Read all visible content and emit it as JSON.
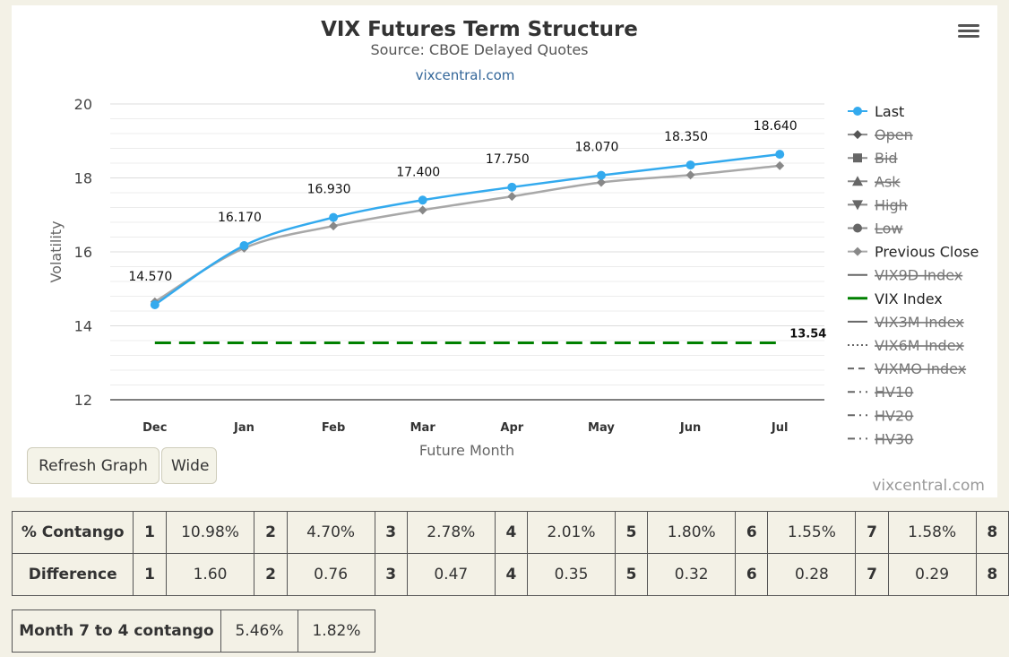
{
  "chart_data": {
    "type": "line",
    "title": "VIX Futures Term Structure",
    "subtitle": "Source: CBOE Delayed Quotes",
    "link_text": "vixcentral.com",
    "xlabel": "Future Month",
    "ylabel": "Volatility",
    "categories": [
      "Dec",
      "Jan",
      "Feb",
      "Mar",
      "Apr",
      "May",
      "Jun",
      "Jul"
    ],
    "ylim": [
      12,
      20
    ],
    "yticks": [
      12,
      14,
      16,
      18,
      20
    ],
    "grid": true,
    "legend_position": "right",
    "series": [
      {
        "name": "Last",
        "values": [
          14.57,
          16.17,
          16.93,
          17.4,
          17.75,
          18.07,
          18.35,
          18.64
        ],
        "labels": [
          "14.570",
          "16.170",
          "16.930",
          "17.400",
          "17.750",
          "18.070",
          "18.350",
          "18.640"
        ],
        "color": "#33aaee",
        "marker": "circle",
        "visible": true
      },
      {
        "name": "Previous Close",
        "values": [
          14.65,
          16.1,
          16.7,
          17.13,
          17.5,
          17.88,
          18.08,
          18.33
        ],
        "color": "#a8a8a8",
        "marker": "diamond",
        "visible": true
      },
      {
        "name": "VIX Index",
        "values": [
          13.54,
          13.54,
          13.54,
          13.54,
          13.54,
          13.54,
          13.54,
          13.54
        ],
        "end_label": "13.54",
        "color": "#008000",
        "dash": "long",
        "visible": true
      }
    ],
    "legend": [
      {
        "name": "Last",
        "icon": "circle",
        "color": "#33aaee",
        "hidden": false
      },
      {
        "name": "Open",
        "icon": "diamond",
        "color": "#555555",
        "hidden": true
      },
      {
        "name": "Bid",
        "icon": "square",
        "color": "#555555",
        "hidden": true
      },
      {
        "name": "Ask",
        "icon": "triangle",
        "color": "#555555",
        "hidden": true
      },
      {
        "name": "High",
        "icon": "triangle-down",
        "color": "#555555",
        "hidden": true
      },
      {
        "name": "Low",
        "icon": "circle",
        "color": "#555555",
        "hidden": true
      },
      {
        "name": "Previous Close",
        "icon": "diamond",
        "color": "#a8a8a8",
        "hidden": false
      },
      {
        "name": "VIX9D Index",
        "icon": "line",
        "color": "#555555",
        "hidden": true
      },
      {
        "name": "VIX Index",
        "icon": "line",
        "color": "#008000",
        "hidden": false
      },
      {
        "name": "VIX3M Index",
        "icon": "line",
        "color": "#555555",
        "hidden": true
      },
      {
        "name": "VIX6M Index",
        "icon": "dotted",
        "color": "#555555",
        "hidden": true
      },
      {
        "name": "VIXMO Index",
        "icon": "dashed",
        "color": "#555555",
        "hidden": true
      },
      {
        "name": "HV10",
        "icon": "dashdot",
        "color": "#555555",
        "hidden": true
      },
      {
        "name": "HV20",
        "icon": "dashdot",
        "color": "#555555",
        "hidden": true
      },
      {
        "name": "HV30",
        "icon": "dashdot",
        "color": "#555555",
        "hidden": true
      }
    ],
    "credit": "vixcentral.com"
  },
  "controls": {
    "refresh_label": "Refresh Graph",
    "wide_label": "Wide"
  },
  "contango_table": {
    "rows": [
      {
        "label": "% Contango",
        "cells": [
          [
            "1",
            "10.98%"
          ],
          [
            "2",
            "4.70%"
          ],
          [
            "3",
            "2.78%"
          ],
          [
            "4",
            "2.01%"
          ],
          [
            "5",
            "1.80%"
          ],
          [
            "6",
            "1.55%"
          ],
          [
            "7",
            "1.58%"
          ]
        ],
        "last_index": "8"
      },
      {
        "label": "Difference",
        "cells": [
          [
            "1",
            "1.60"
          ],
          [
            "2",
            "0.76"
          ],
          [
            "3",
            "0.47"
          ],
          [
            "4",
            "0.35"
          ],
          [
            "5",
            "0.32"
          ],
          [
            "6",
            "0.28"
          ],
          [
            "7",
            "0.29"
          ]
        ],
        "last_index": "8"
      }
    ]
  },
  "summary_table": {
    "label": "Month 7 to 4 contango",
    "values": [
      "5.46%",
      "1.82%"
    ]
  }
}
